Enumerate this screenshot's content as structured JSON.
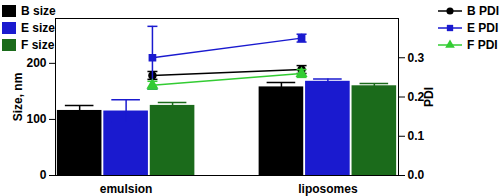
{
  "chart_data": {
    "type": "bar",
    "categories": [
      "emulsion",
      "liposomes"
    ],
    "ylabel": "Size, nm",
    "ylim": [
      0,
      280
    ],
    "yticks": [
      0,
      100,
      200
    ],
    "y2label": "PDI",
    "y2lim": [
      0,
      0.4
    ],
    "y2ticks": [
      {
        "value": 0,
        "label": "0.0"
      },
      0.1,
      0.2,
      0.3
    ],
    "series": [
      {
        "name": "B size",
        "type": "bar",
        "color": "#000000",
        "values": [
          116,
          158
        ],
        "errors": [
          9,
          8
        ]
      },
      {
        "name": "E size",
        "type": "bar",
        "color": "#1a1acf",
        "values": [
          115,
          168
        ],
        "errors": [
          20,
          4
        ]
      },
      {
        "name": "F size",
        "type": "bar",
        "color": "#1b6b1b",
        "values": [
          125,
          160
        ],
        "errors": [
          5,
          4
        ]
      },
      {
        "name": "B PDI",
        "type": "line",
        "axis": "y2",
        "marker": "circle",
        "color": "#000000",
        "values": [
          0.255,
          0.27
        ],
        "errors": [
          0.01,
          0.01
        ]
      },
      {
        "name": "E PDI",
        "type": "line",
        "axis": "y2",
        "marker": "square",
        "color": "#1a1acf",
        "values": [
          0.3,
          0.35
        ],
        "errors": [
          0.08,
          0.01
        ]
      },
      {
        "name": "F PDI",
        "type": "line",
        "axis": "y2",
        "marker": "triangle",
        "color": "#33cc33",
        "values": [
          0.23,
          0.26
        ],
        "errors": [
          0.01,
          0.01
        ]
      }
    ]
  }
}
